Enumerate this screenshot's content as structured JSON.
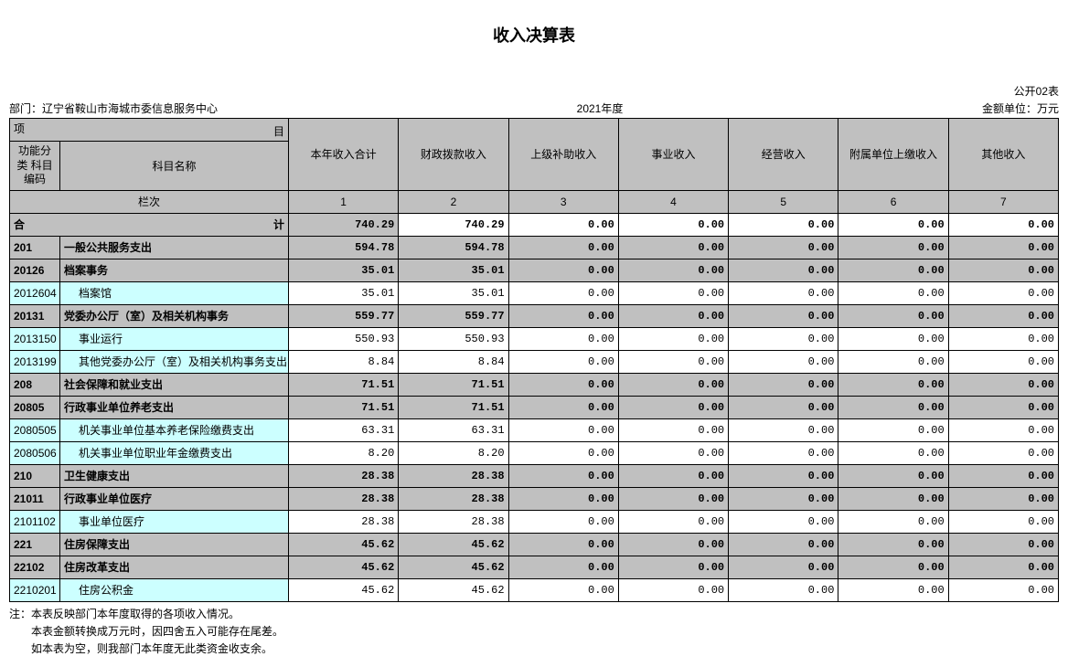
{
  "title": "收入决算表",
  "form_code": "公开02表",
  "dept_label": "部门：",
  "dept_name": "辽宁省鞍山市海城市委信息服务中心",
  "year": "2021年度",
  "unit_label": "金额单位：万元",
  "header": {
    "proj_left": "项",
    "proj_right": "目",
    "code": "功能分类\n科目编码",
    "name": "科目名称",
    "cols": [
      "本年收入合计",
      "财政拨款收入",
      "上级补助收入",
      "事业收入",
      "经营收入",
      "附属单位上缴收入",
      "其他收入"
    ]
  },
  "lanci_label": "栏次",
  "lanci_nums": [
    "1",
    "2",
    "3",
    "4",
    "5",
    "6",
    "7"
  ],
  "total_left": "合",
  "total_right": "计",
  "total_vals": [
    "740.29",
    "740.29",
    "0.00",
    "0.00",
    "0.00",
    "0.00",
    "0.00"
  ],
  "rows": [
    {
      "code": "201",
      "name": "一般公共服务支出",
      "vals": [
        "594.78",
        "594.78",
        "0.00",
        "0.00",
        "0.00",
        "0.00",
        "0.00"
      ],
      "bold": true,
      "indent": 0
    },
    {
      "code": "20126",
      "name": "档案事务",
      "vals": [
        "35.01",
        "35.01",
        "0.00",
        "0.00",
        "0.00",
        "0.00",
        "0.00"
      ],
      "bold": true,
      "indent": 0
    },
    {
      "code": "2012604",
      "name": "档案馆",
      "vals": [
        "35.01",
        "35.01",
        "0.00",
        "0.00",
        "0.00",
        "0.00",
        "0.00"
      ],
      "cyan": true,
      "indent": 1
    },
    {
      "code": "20131",
      "name": "党委办公厅（室）及相关机构事务",
      "vals": [
        "559.77",
        "559.77",
        "0.00",
        "0.00",
        "0.00",
        "0.00",
        "0.00"
      ],
      "bold": true,
      "indent": 0
    },
    {
      "code": "2013150",
      "name": "事业运行",
      "vals": [
        "550.93",
        "550.93",
        "0.00",
        "0.00",
        "0.00",
        "0.00",
        "0.00"
      ],
      "cyan": true,
      "indent": 1
    },
    {
      "code": "2013199",
      "name": "其他党委办公厅（室）及相关机构事务支出",
      "vals": [
        "8.84",
        "8.84",
        "0.00",
        "0.00",
        "0.00",
        "0.00",
        "0.00"
      ],
      "cyan": true,
      "indent": 1
    },
    {
      "code": "208",
      "name": "社会保障和就业支出",
      "vals": [
        "71.51",
        "71.51",
        "0.00",
        "0.00",
        "0.00",
        "0.00",
        "0.00"
      ],
      "bold": true,
      "indent": 0
    },
    {
      "code": "20805",
      "name": "行政事业单位养老支出",
      "vals": [
        "71.51",
        "71.51",
        "0.00",
        "0.00",
        "0.00",
        "0.00",
        "0.00"
      ],
      "bold": true,
      "indent": 0
    },
    {
      "code": "2080505",
      "name": "机关事业单位基本养老保险缴费支出",
      "vals": [
        "63.31",
        "63.31",
        "0.00",
        "0.00",
        "0.00",
        "0.00",
        "0.00"
      ],
      "cyan": true,
      "indent": 1
    },
    {
      "code": "2080506",
      "name": "机关事业单位职业年金缴费支出",
      "vals": [
        "8.20",
        "8.20",
        "0.00",
        "0.00",
        "0.00",
        "0.00",
        "0.00"
      ],
      "cyan": true,
      "indent": 1
    },
    {
      "code": "210",
      "name": "卫生健康支出",
      "vals": [
        "28.38",
        "28.38",
        "0.00",
        "0.00",
        "0.00",
        "0.00",
        "0.00"
      ],
      "bold": true,
      "indent": 0
    },
    {
      "code": "21011",
      "name": "行政事业单位医疗",
      "vals": [
        "28.38",
        "28.38",
        "0.00",
        "0.00",
        "0.00",
        "0.00",
        "0.00"
      ],
      "bold": true,
      "indent": 0
    },
    {
      "code": "2101102",
      "name": "事业单位医疗",
      "vals": [
        "28.38",
        "28.38",
        "0.00",
        "0.00",
        "0.00",
        "0.00",
        "0.00"
      ],
      "cyan": true,
      "indent": 1
    },
    {
      "code": "221",
      "name": "住房保障支出",
      "vals": [
        "45.62",
        "45.62",
        "0.00",
        "0.00",
        "0.00",
        "0.00",
        "0.00"
      ],
      "bold": true,
      "indent": 0
    },
    {
      "code": "22102",
      "name": "住房改革支出",
      "vals": [
        "45.62",
        "45.62",
        "0.00",
        "0.00",
        "0.00",
        "0.00",
        "0.00"
      ],
      "bold": true,
      "indent": 0
    },
    {
      "code": "2210201",
      "name": "住房公积金",
      "vals": [
        "45.62",
        "45.62",
        "0.00",
        "0.00",
        "0.00",
        "0.00",
        "0.00"
      ],
      "cyan": true,
      "indent": 1
    }
  ],
  "notes": [
    "注：本表反映部门本年度取得的各项收入情况。",
    "　　本表金额转换成万元时，因四舍五入可能存在尾差。",
    "　　如本表为空，则我部门本年度无此类资金收支余。"
  ],
  "colors": {
    "header_bg": "#c0c0c0",
    "cyan_bg": "#ccffff",
    "border": "#000000",
    "page_bg": "#ffffff"
  }
}
